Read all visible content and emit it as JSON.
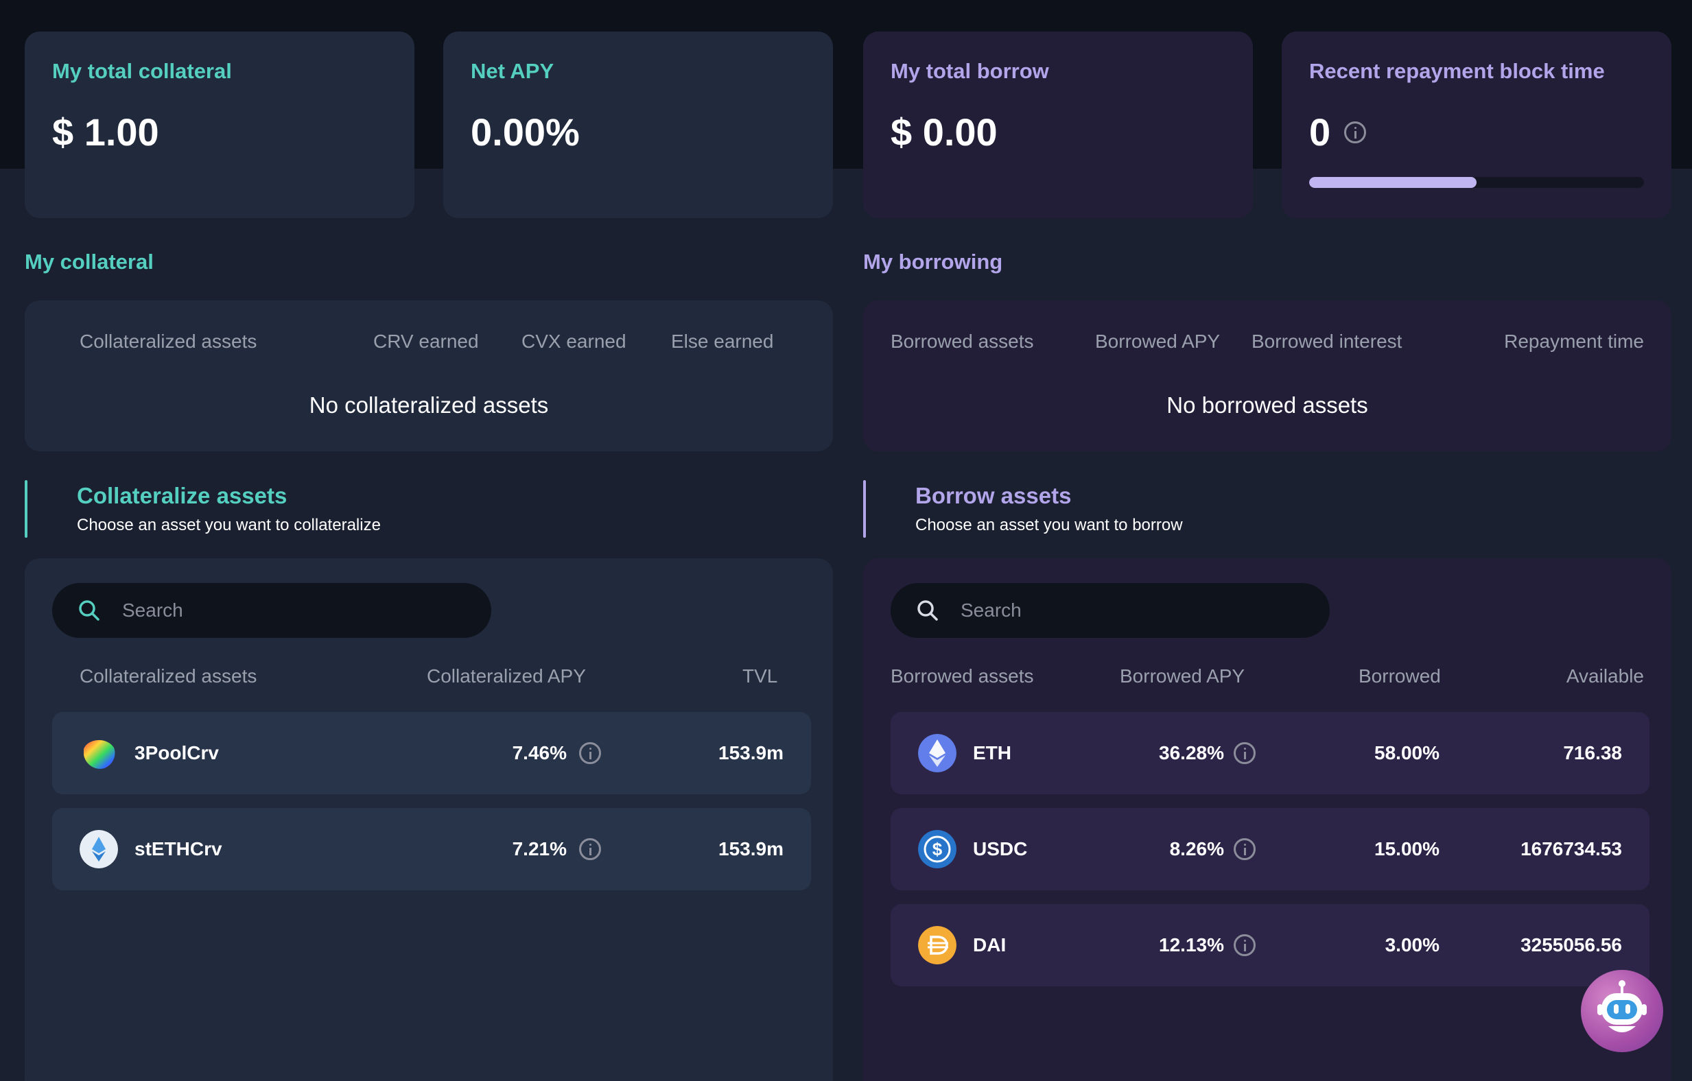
{
  "stats": {
    "total_collateral": {
      "label": "My total collateral",
      "value": "$ 1.00"
    },
    "net_apy": {
      "label": "Net APY",
      "value": "0.00%"
    },
    "total_borrow": {
      "label": "My total borrow",
      "value": "$ 0.00"
    },
    "repayment": {
      "label": "Recent repayment block time",
      "value": "0",
      "progress_percent": 50
    }
  },
  "my_collateral": {
    "title": "My collateral",
    "columns": [
      "Collateralized assets",
      "CRV earned",
      "CVX earned",
      "Else earned"
    ],
    "empty": "No collateralized assets"
  },
  "my_borrowing": {
    "title": "My borrowing",
    "columns": [
      "Borrowed assets",
      "Borrowed APY",
      "Borrowed interest",
      "Repayment time"
    ],
    "empty": "No borrowed assets"
  },
  "collateralize": {
    "title": "Collateralize assets",
    "subtitle": "Choose an asset you want to collateralize",
    "search_placeholder": "Search",
    "columns": [
      "Collateralized assets",
      "Collateralized APY",
      "TVL"
    ],
    "rows": [
      {
        "asset": "3PoolCrv",
        "apy": "7.46%",
        "tvl": "153.9m",
        "icon": "3poolcrv-rainbow-icon"
      },
      {
        "asset": "stETHCrv",
        "apy": "7.21%",
        "tvl": "153.9m",
        "icon": "steth-drop-icon"
      }
    ]
  },
  "borrow": {
    "title": "Borrow assets",
    "subtitle": "Choose an asset you want to borrow",
    "search_placeholder": "Search",
    "columns": [
      "Borrowed assets",
      "Borrowed APY",
      "Borrowed",
      "Available"
    ],
    "rows": [
      {
        "asset": "ETH",
        "apy": "36.28%",
        "borrowed": "58.00%",
        "available": "716.38",
        "icon": "eth-icon"
      },
      {
        "asset": "USDC",
        "apy": "8.26%",
        "borrowed": "15.00%",
        "available": "1676734.53",
        "icon": "usdc-icon"
      },
      {
        "asset": "DAI",
        "apy": "12.13%",
        "borrowed": "3.00%",
        "available": "3255056.56",
        "icon": "dai-icon"
      }
    ]
  },
  "colors": {
    "teal_accent": "#55cfc0",
    "purple_accent": "#b2a5ea",
    "background": "#1a2030"
  }
}
